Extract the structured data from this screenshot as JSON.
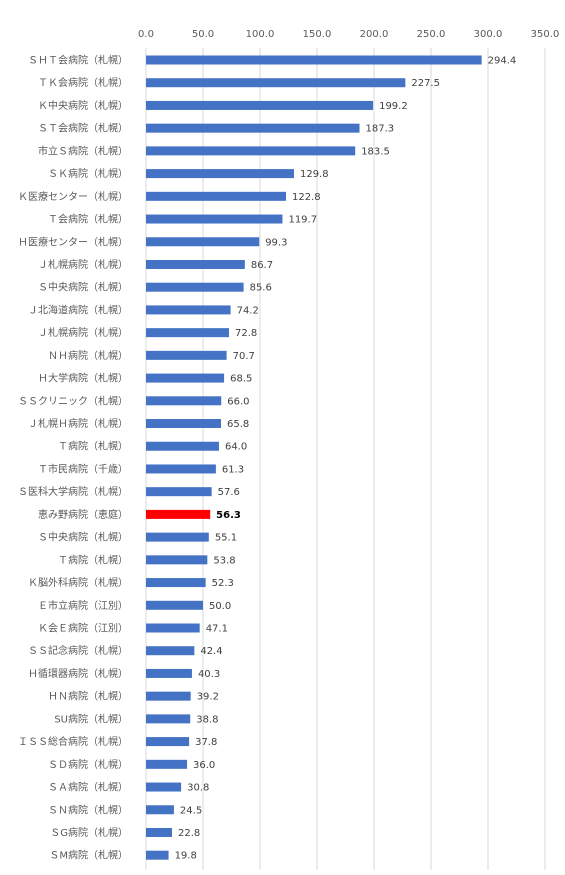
{
  "chart_data": {
    "type": "bar",
    "orientation": "horizontal",
    "title": "",
    "xlabel": "",
    "ylabel": "",
    "xlim": [
      0,
      350
    ],
    "ticks": [
      "0.0",
      "50.0",
      "100.0",
      "150.0",
      "200.0",
      "250.0",
      "300.0",
      "350.0"
    ],
    "tick_values": [
      0,
      50,
      100,
      150,
      200,
      250,
      300,
      350
    ],
    "grid": true,
    "legend": "none",
    "colors": {
      "bar": "#4472c4",
      "highlight": "#ff0000",
      "grid": "#d9d9d9"
    },
    "highlight_category": "恵み野病院（恵庭）",
    "categories": [
      "ＳＨＴ会病院（札幌）",
      "ＴＫ会病院（札幌）",
      "Ｋ中央病院（札幌）",
      "ＳＴ会病院（札幌）",
      "市立Ｓ病院（札幌）",
      "ＳＫ病院（札幌）",
      "Ｋ医療センター（札幌）",
      "Ｔ会病院（札幌）",
      "Ｈ医療センター（札幌）",
      "Ｊ札幌病院（札幌）",
      "Ｓ中央病院（札幌）",
      "Ｊ北海道病院（札幌）",
      "Ｊ札幌病院（札幌）",
      "ＮＨ病院（札幌）",
      "Ｈ大学病院（札幌）",
      "ＳＳクリニック（札幌）",
      "Ｊ札幌Ｈ病院（札幌）",
      "Ｔ病院（札幌）",
      "Ｔ市民病院（千歳）",
      "Ｓ医科大学病院（札幌）",
      "恵み野病院（恵庭）",
      "Ｓ中央病院（札幌）",
      "Ｔ病院（札幌）",
      "Ｋ脳外科病院（札幌）",
      "Ｅ市立病院（江別）",
      "Ｋ会Ｅ病院（江別）",
      "ＳＳ記念病院（札幌）",
      "Ｈ循環器病院（札幌）",
      "ＨＮ病院（札幌）",
      "SU病院（札幌）",
      "ＩＳＳ総合病院（札幌）",
      "ＳＤ病院（札幌）",
      "ＳＡ病院（札幌）",
      "ＳＮ病院（札幌）",
      "ＳG病院（札幌）",
      "ＳM病院（札幌）"
    ],
    "values": [
      294.4,
      227.5,
      199.2,
      187.3,
      183.5,
      129.8,
      122.8,
      119.7,
      99.3,
      86.7,
      85.6,
      74.2,
      72.8,
      70.7,
      68.5,
      66.0,
      65.8,
      64.0,
      61.3,
      57.6,
      56.3,
      55.1,
      53.8,
      52.3,
      50.0,
      47.1,
      42.4,
      40.3,
      39.2,
      38.8,
      37.8,
      36.0,
      30.8,
      24.5,
      22.8,
      19.8
    ],
    "value_labels": [
      "294.4",
      "227.5",
      "199.2",
      "187.3",
      "183.5",
      "129.8",
      "122.8",
      "119.7",
      "99.3",
      "86.7",
      "85.6",
      "74.2",
      "72.8",
      "70.7",
      "68.5",
      "66.0",
      "65.8",
      "64.0",
      "61.3",
      "57.6",
      "56.3",
      "55.1",
      "53.8",
      "52.3",
      "50.0",
      "47.1",
      "42.4",
      "40.3",
      "39.2",
      "38.8",
      "37.8",
      "36.0",
      "30.8",
      "24.5",
      "22.8",
      "19.8"
    ]
  }
}
